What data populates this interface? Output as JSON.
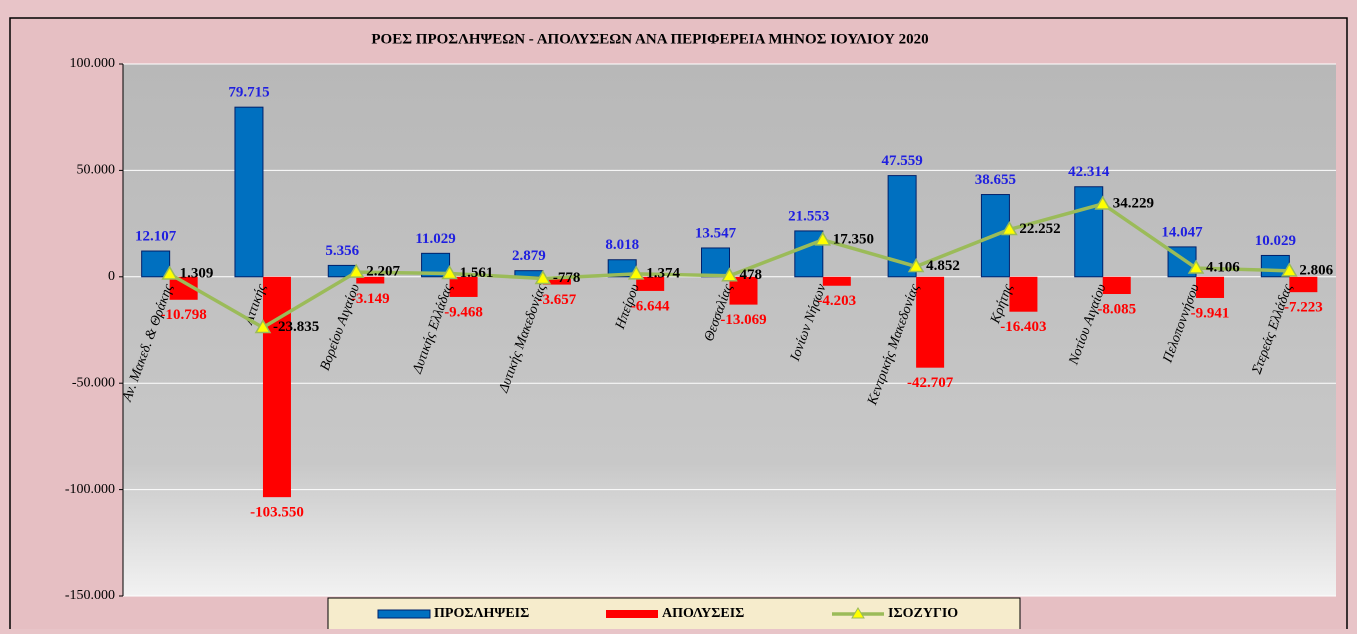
{
  "chart_data": {
    "type": "bar",
    "title": "ΡΟΕΣ ΠΡΟΣΛΗΨΕΩΝ - ΑΠΟΛΥΣΕΩΝ ΑΝΑ ΠΕΡΙΦΕΡΕΙΑ ΜΗΝΟΣ ΙΟΥΛΙΟΥ 2020",
    "categories": [
      "Αν. Μακεδ. & Θράκης",
      "Αττικής",
      "Βορείου Αιγαίου",
      "Δυτικής Ελλάδας",
      "Δυτικής Μακεδονίας",
      "Ηπείρου",
      "Θεσσαλίας",
      "Ιονίων Νήσων",
      "Κεντρικής Μακεδονίας",
      "Κρήτης",
      "Νοτίου Αιγαίου",
      "Πελοποννήσου",
      "Στερεάς Ελλάδας"
    ],
    "series": [
      {
        "name": "ΠΡΟΣΛΗΨΕΙΣ",
        "color": "#0070c0",
        "type": "bar",
        "values": [
          12107,
          79715,
          5356,
          11029,
          2879,
          8018,
          13547,
          21553,
          47559,
          38655,
          42314,
          14047,
          10029
        ],
        "value_labels": [
          "12.107",
          "79.715",
          "5.356",
          "11.029",
          "2.879",
          "8.018",
          "13.547",
          "21.553",
          "47.559",
          "38.655",
          "42.314",
          "14.047",
          "10.029"
        ]
      },
      {
        "name": "ΑΠΟΛΥΣΕΙΣ",
        "color": "#ff0000",
        "type": "bar",
        "values": [
          -10798,
          -103550,
          -3149,
          -9468,
          -3657,
          -6644,
          -13069,
          -4203,
          -42707,
          -16403,
          -8085,
          -9941,
          -7223
        ],
        "value_labels": [
          "-10.798",
          "-103.550",
          "-3.149",
          "-9.468",
          "-3.657",
          "-6.644",
          "-13.069",
          "-4.203",
          "-42.707",
          "-16.403",
          "-8.085",
          "-9.941",
          "-7.223"
        ]
      },
      {
        "name": "ΙΣΟΖΥΓΙΟ",
        "color": "#9bbb59",
        "type": "line",
        "values": [
          1309,
          -23835,
          2207,
          1561,
          -778,
          1374,
          478,
          17350,
          4852,
          22252,
          34229,
          4106,
          2806
        ],
        "value_labels": [
          "1.309",
          "-23.835",
          "2.207",
          "1.561",
          "-778",
          "1.374",
          "478",
          "17.350",
          "4.852",
          "22.252",
          "34.229",
          "4.106",
          "2.806"
        ]
      }
    ],
    "ylim": [
      -150000,
      100000
    ],
    "yticks": [
      {
        "value": -150000,
        "label": "-150.000"
      },
      {
        "value": -100000,
        "label": "-100.000"
      },
      {
        "value": -50000,
        "label": "-50.000"
      },
      0,
      {
        "value": 50000,
        "label": "50.000"
      },
      {
        "value": 100000,
        "label": "100.000"
      }
    ],
    "grid": true
  }
}
